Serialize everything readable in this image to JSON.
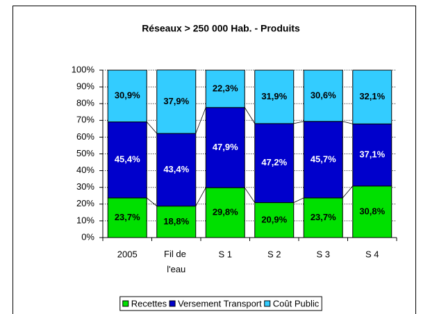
{
  "chart_data": {
    "type": "stacked_bar_100",
    "title": "Réseaux > 250 000 Hab. - Produits",
    "categories": [
      "2005",
      "Fil de l'eau",
      "S 1",
      "S 2",
      "S 3",
      "S 4"
    ],
    "series": [
      {
        "name": "Recettes",
        "color": "#00e000",
        "label_color": "#000000",
        "values": [
          23.7,
          18.8,
          29.8,
          20.9,
          23.7,
          30.8
        ],
        "value_labels": [
          "23,7%",
          "18,8%",
          "29,8%",
          "20,9%",
          "23,7%",
          "30,8%"
        ]
      },
      {
        "name": "Versement Transport",
        "color": "#0000cc",
        "label_color": "#ffffff",
        "values": [
          45.4,
          43.4,
          47.9,
          47.2,
          45.7,
          37.1
        ],
        "value_labels": [
          "45,4%",
          "43,4%",
          "47,9%",
          "47,2%",
          "45,7%",
          "37,1%"
        ]
      },
      {
        "name": "Coût Public",
        "color": "#33ccff",
        "label_color": "#000000",
        "values": [
          30.9,
          37.9,
          22.3,
          31.9,
          30.6,
          32.1
        ],
        "value_labels": [
          "30,9%",
          "37,9%",
          "22,3%",
          "31,9%",
          "30,6%",
          "32,1%"
        ]
      }
    ],
    "ylim": [
      0,
      100
    ],
    "yticks": [
      {
        "value": 0,
        "label": "0%"
      },
      {
        "value": 10,
        "label": "10%"
      },
      {
        "value": 20,
        "label": "20%"
      },
      {
        "value": 30,
        "label": "30%"
      },
      {
        "value": 40,
        "label": "40%"
      },
      {
        "value": 50,
        "label": "50%"
      },
      {
        "value": 60,
        "label": "60%"
      },
      {
        "value": 70,
        "label": "70%"
      },
      {
        "value": 80,
        "label": "80%"
      },
      {
        "value": 90,
        "label": "90%"
      },
      {
        "value": 100,
        "label": "100%"
      }
    ],
    "grid": true,
    "legend": "bottom"
  }
}
